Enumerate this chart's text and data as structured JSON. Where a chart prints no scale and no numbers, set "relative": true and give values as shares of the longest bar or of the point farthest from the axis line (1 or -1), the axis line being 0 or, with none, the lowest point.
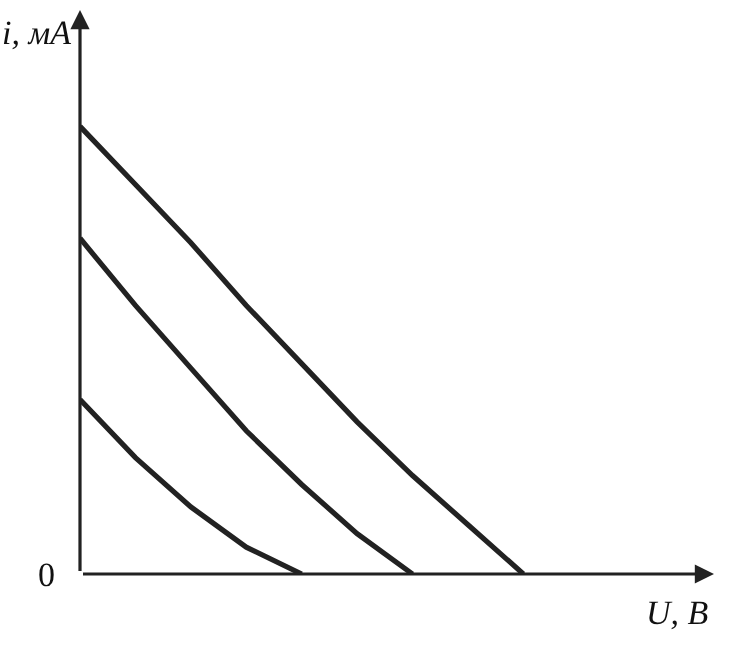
{
  "chart_data": {
    "type": "line",
    "relative": true,
    "xlabel": "U, В",
    "ylabel": "i, мА",
    "annotations": [
      "0"
    ],
    "marker": "none",
    "line_style": "solid",
    "categories": [
      null,
      null,
      null,
      null,
      null,
      null,
      null,
      null,
      null
    ],
    "series": [
      {
        "color": "#222222",
        "values": [
          1,
          0.87,
          0.74,
          0.6,
          0.47,
          0.34,
          0.22,
          0.11,
          0
        ]
      },
      {
        "color": "#222222",
        "values": [
          0.75,
          0.6,
          0.46,
          0.32,
          0.2,
          0.09,
          0,
          null,
          null
        ]
      },
      {
        "color": "#222222",
        "values": [
          0.39,
          0.26,
          0.15,
          0.06,
          0,
          null,
          null,
          null,
          null
        ]
      }
    ]
  }
}
